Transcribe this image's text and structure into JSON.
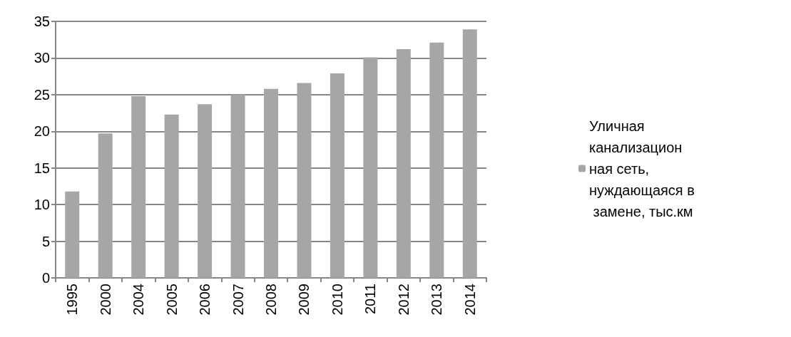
{
  "chart_data": {
    "type": "bar",
    "categories": [
      "1995",
      "2000",
      "2004",
      "2005",
      "2006",
      "2007",
      "2008",
      "2009",
      "2010",
      "2011",
      "2012",
      "2013",
      "2014"
    ],
    "series": [
      {
        "name": "Уличная канализационная сеть, нуждающаяся в замене, тыс.км",
        "color": "#a6a6a6",
        "values": [
          11.8,
          19.7,
          24.8,
          22.3,
          23.7,
          25.0,
          25.8,
          26.6,
          27.9,
          30.1,
          31.2,
          32.1,
          33.9
        ]
      }
    ],
    "ylim": [
      0,
      35
    ],
    "yticks": [
      0,
      5,
      10,
      15,
      20,
      25,
      30,
      35
    ],
    "grid": "y",
    "legend": "right"
  }
}
